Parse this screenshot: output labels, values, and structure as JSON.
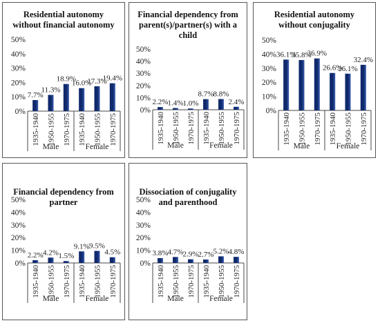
{
  "colors": {
    "bar": "#10296b",
    "bar_light": "#3a5db0",
    "axis": "#444444",
    "panel_border": "#555555"
  },
  "chart_data": [
    {
      "type": "bar",
      "title": "Residential autonomy without financial autonomy",
      "title_lines": [
        "Residential autonomy",
        "without financial autonomy"
      ],
      "categories": [
        "1935-1940",
        "1950-1955",
        "1970-1975",
        "1935-1940",
        "1950-1955",
        "1970-1975"
      ],
      "groups": [
        {
          "label": "Male",
          "count": 3
        },
        {
          "label": "Female",
          "count": 3
        }
      ],
      "values": [
        7.7,
        11.3,
        18.9,
        16.0,
        17.3,
        19.4
      ],
      "value_labels": [
        "7.7%",
        "11.3%",
        "18.9%",
        "16.0%",
        "17.3%",
        "19.4%"
      ],
      "ylim": [
        0,
        50
      ],
      "yticks": [
        "0%",
        "10%",
        "20%",
        "30%",
        "40%",
        "50%"
      ],
      "grid": false
    },
    {
      "type": "bar",
      "title": "Financial dependency from parent(s)/partner(s) with a child",
      "title_lines": [
        "Financial dependency from",
        "parent(s)/partner(s) with a",
        "child"
      ],
      "categories": [
        "1935-1940",
        "1950-1955",
        "1970-1975",
        "1935-1940",
        "1950-1955",
        "1970-1975"
      ],
      "groups": [
        {
          "label": "Male",
          "count": 3
        },
        {
          "label": "Female",
          "count": 3
        }
      ],
      "values": [
        2.2,
        1.4,
        1.0,
        8.7,
        8.8,
        2.4
      ],
      "value_labels": [
        "2.2%",
        "1.4%",
        "1.0%",
        "8.7%",
        "8.8%",
        "2.4%"
      ],
      "ylim": [
        0,
        50
      ],
      "yticks": [
        "0%",
        "10%",
        "20%",
        "30%",
        "40%",
        "50%"
      ],
      "grid": false
    },
    {
      "type": "bar",
      "title": "Residential autonomy without conjugality",
      "title_lines": [
        "Residential autonomy",
        "without conjugality"
      ],
      "categories": [
        "1935-1940",
        "1950-1955",
        "1970-1975",
        "1935-1940",
        "1950-1955",
        "1970-1975"
      ],
      "groups": [
        {
          "label": "Male",
          "count": 3
        },
        {
          "label": "Female",
          "count": 3
        }
      ],
      "values": [
        36.1,
        35.8,
        36.9,
        26.6,
        26.1,
        32.4
      ],
      "value_labels": [
        "36.1%",
        "35.8%",
        "36.9%",
        "26.6%",
        "26.1%",
        "32.4%"
      ],
      "ylim": [
        0,
        50
      ],
      "yticks": [
        "0%",
        "10%",
        "20%",
        "30%",
        "40%",
        "50%"
      ],
      "grid": false
    },
    {
      "type": "bar",
      "title": "Financial dependency from partner",
      "title_lines": [
        "Financial dependency from",
        "partner"
      ],
      "categories": [
        "1935-1940",
        "1950-1955",
        "1970-1975",
        "1935-1940",
        "1950-1955",
        "1970-1975"
      ],
      "groups": [
        {
          "label": "Male",
          "count": 3
        },
        {
          "label": "Female",
          "count": 3
        }
      ],
      "values": [
        2.2,
        4.2,
        1.5,
        9.1,
        9.5,
        4.5
      ],
      "value_labels": [
        "2.2%",
        "4.2%",
        "1.5%",
        "9.1%",
        "9.5%",
        "4.5%"
      ],
      "ylim": [
        0,
        50
      ],
      "yticks": [
        "0%",
        "10%",
        "20%",
        "30%",
        "40%",
        "50%"
      ],
      "grid": false
    },
    {
      "type": "bar",
      "title": "Dissociation of conjugality and parenthood",
      "title_lines": [
        "Dissociation of conjugality",
        "and parenthood"
      ],
      "categories": [
        "1935-1940",
        "1950-1955",
        "1970-1975",
        "1935-1940",
        "1950-1955",
        "1970-1975"
      ],
      "groups": [
        {
          "label": "Male",
          "count": 3
        },
        {
          "label": "Female",
          "count": 3
        }
      ],
      "values": [
        3.8,
        4.7,
        2.9,
        2.7,
        5.2,
        4.8
      ],
      "value_labels": [
        "3.8%",
        "4.7%",
        "2.9%",
        "2.7%",
        "5.2%",
        "4.8%"
      ],
      "ylim": [
        0,
        50
      ],
      "yticks": [
        "0%",
        "10%",
        "20%",
        "30%",
        "40%",
        "50%"
      ],
      "grid": false
    }
  ]
}
